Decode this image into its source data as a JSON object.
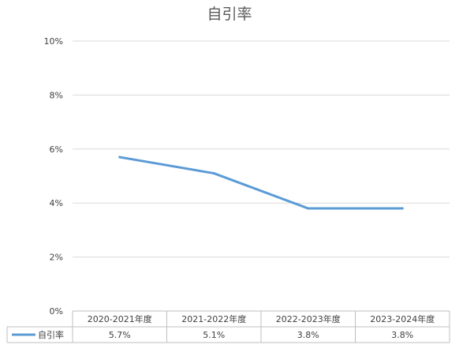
{
  "chart_data": {
    "type": "line",
    "title": "自引率",
    "categories": [
      "2020-2021年度",
      "2021-2022年度",
      "2022-2023年度",
      "2023-2024年度"
    ],
    "series": [
      {
        "name": "自引率",
        "values": [
          5.7,
          5.1,
          3.8,
          3.8
        ],
        "labels": [
          "5.7%",
          "5.1%",
          "3.8%",
          "3.8%"
        ],
        "color": "#5B9BD5"
      }
    ],
    "ylim": [
      0,
      10
    ],
    "yticks": [
      "0%",
      "2%",
      "4%",
      "6%",
      "8%",
      "10%"
    ],
    "ytick_values": [
      0,
      2,
      4,
      6,
      8,
      10
    ],
    "xlabel": "",
    "ylabel": "",
    "grid": true,
    "legend": "data-table-left",
    "data_table": true,
    "colors": {
      "grid": "#D9D9D9",
      "table_border": "#BFBFBF",
      "text": "#404040",
      "title": "#595959"
    }
  }
}
